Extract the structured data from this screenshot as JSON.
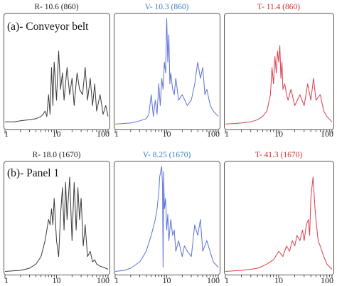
{
  "colors": {
    "R": "#3a3a3a",
    "V": "#5b72d8",
    "T": "#dd3c4c",
    "V_title": "#3a7fc4",
    "T_title": "#d42a2a",
    "axis": "#222222",
    "frame": "#555555"
  },
  "rows": [
    {
      "label": "(a)- Conveyor belt"
    },
    {
      "label": "(b)- Panel 1"
    }
  ],
  "chart_data": [
    {
      "type": "line",
      "title": "R- 10.6 (860)",
      "x_scale": "log",
      "xlim": [
        1,
        100
      ],
      "xticks": [
        "1",
        "10",
        "100"
      ],
      "color": "R",
      "x": [
        1,
        1.5,
        2,
        3,
        4,
        5,
        5.5,
        6,
        6.5,
        7,
        7.5,
        8,
        8.5,
        9,
        10,
        11,
        12,
        13,
        14,
        16,
        18,
        20,
        22,
        25,
        28,
        32,
        36,
        40,
        45,
        50,
        55,
        60,
        70,
        80,
        90,
        100
      ],
      "y": [
        0.05,
        0.05,
        0.06,
        0.07,
        0.08,
        0.1,
        0.12,
        0.15,
        0.1,
        0.3,
        0.12,
        0.55,
        0.2,
        0.6,
        0.25,
        0.7,
        0.35,
        0.5,
        0.25,
        0.55,
        0.3,
        0.45,
        0.2,
        0.5,
        0.35,
        0.3,
        0.55,
        0.25,
        0.45,
        0.2,
        0.4,
        0.15,
        0.3,
        0.12,
        0.2,
        0.1
      ]
    },
    {
      "type": "line",
      "title": "V- 10.3 (860)",
      "x_scale": "log",
      "xlim": [
        1,
        100
      ],
      "xticks": [
        "1",
        "10",
        "100"
      ],
      "color": "V",
      "x": [
        1,
        2,
        3,
        4,
        4.5,
        5,
        5.5,
        6,
        6.5,
        7,
        7.5,
        8,
        8.5,
        9,
        9.5,
        10,
        10.5,
        11,
        11.5,
        12,
        13,
        14,
        15,
        17,
        20,
        25,
        30,
        35,
        40,
        45,
        50,
        55,
        60,
        70,
        80,
        100
      ],
      "y": [
        0.03,
        0.04,
        0.06,
        0.08,
        0.12,
        0.3,
        0.1,
        0.25,
        0.12,
        0.4,
        0.2,
        0.45,
        0.35,
        0.6,
        0.5,
        1.0,
        0.6,
        0.85,
        0.4,
        0.5,
        0.35,
        0.3,
        0.45,
        0.25,
        0.3,
        0.2,
        0.25,
        0.4,
        0.6,
        0.45,
        0.55,
        0.3,
        0.35,
        0.2,
        0.15,
        0.1
      ]
    },
    {
      "type": "line",
      "title": "T- 11.4 (860)",
      "x_scale": "log",
      "xlim": [
        1,
        100
      ],
      "xticks": [
        "1",
        "10",
        "100"
      ],
      "color": "T",
      "x": [
        1,
        2,
        3,
        4,
        5,
        6,
        7,
        7.5,
        8,
        8.5,
        9,
        9.5,
        10,
        10.5,
        11,
        11.5,
        12,
        13,
        14,
        15,
        17,
        20,
        25,
        30,
        35,
        40,
        45,
        50,
        60,
        70,
        80,
        100
      ],
      "y": [
        0.03,
        0.04,
        0.05,
        0.07,
        0.1,
        0.15,
        0.3,
        0.55,
        0.4,
        0.65,
        0.5,
        0.7,
        0.6,
        0.75,
        0.45,
        0.6,
        0.35,
        0.4,
        0.3,
        0.25,
        0.35,
        0.2,
        0.3,
        0.2,
        0.4,
        0.25,
        0.45,
        0.25,
        0.3,
        0.15,
        0.1,
        0.05
      ]
    },
    {
      "type": "line",
      "title": "R- 18.0 (1670)",
      "x_scale": "log",
      "xlim": [
        1,
        100
      ],
      "xticks": [
        "1",
        "10",
        "100"
      ],
      "color": "R",
      "x": [
        1,
        2,
        3,
        4,
        5,
        6,
        7,
        7.5,
        8,
        8.5,
        9,
        10,
        11,
        12,
        13,
        14,
        15,
        16,
        18,
        20,
        22,
        24,
        26,
        28,
        30,
        33,
        36,
        40,
        45,
        50,
        55,
        60,
        70,
        80,
        90,
        100
      ],
      "y": [
        0.01,
        0.02,
        0.04,
        0.08,
        0.15,
        0.3,
        0.5,
        0.45,
        0.6,
        0.45,
        0.7,
        0.3,
        0.15,
        0.55,
        0.8,
        0.4,
        0.85,
        0.5,
        0.9,
        0.3,
        0.85,
        0.4,
        0.8,
        0.5,
        0.7,
        0.25,
        0.45,
        0.15,
        0.2,
        0.1,
        0.12,
        0.08,
        0.06,
        0.05,
        0.04,
        0.03
      ]
    },
    {
      "type": "line",
      "title": "V- 8.25 (1670)",
      "x_scale": "log",
      "xlim": [
        1,
        100
      ],
      "xticks": [
        "1",
        "10",
        "100"
      ],
      "color": "V",
      "x": [
        1,
        1.5,
        2,
        3,
        4,
        5,
        6,
        6.5,
        7,
        7.3,
        7.6,
        8,
        8.3,
        8.5,
        8.7,
        9,
        9.5,
        10,
        10.5,
        11,
        12,
        13,
        14,
        15,
        17,
        20,
        22,
        25,
        30,
        35,
        40,
        45,
        50,
        60,
        80,
        100
      ],
      "y": [
        0.01,
        0.02,
        0.04,
        0.1,
        0.2,
        0.35,
        0.5,
        0.6,
        0.75,
        0.9,
        0.95,
        1.0,
        0.8,
        0.05,
        0.95,
        0.6,
        0.7,
        0.4,
        0.55,
        0.3,
        0.5,
        0.35,
        0.4,
        0.2,
        0.3,
        0.15,
        0.25,
        0.2,
        0.15,
        0.45,
        0.35,
        0.5,
        0.2,
        0.3,
        0.1,
        0.05
      ]
    },
    {
      "type": "line",
      "title": "T- 41.3 (1670)",
      "x_scale": "log",
      "xlim": [
        1,
        100
      ],
      "xticks": [
        "1",
        "10",
        "100"
      ],
      "color": "T",
      "x": [
        1,
        2,
        3,
        4,
        5,
        6,
        8,
        10,
        12,
        14,
        16,
        18,
        20,
        22,
        25,
        28,
        30,
        33,
        36,
        38,
        40,
        42,
        44,
        46,
        48,
        50,
        55,
        60,
        70,
        80,
        100
      ],
      "y": [
        0.01,
        0.02,
        0.03,
        0.04,
        0.06,
        0.08,
        0.12,
        0.2,
        0.15,
        0.25,
        0.2,
        0.3,
        0.25,
        0.35,
        0.3,
        0.4,
        0.3,
        0.45,
        0.5,
        0.35,
        0.7,
        0.8,
        0.9,
        0.75,
        0.6,
        0.5,
        0.3,
        0.25,
        0.15,
        0.08,
        0.03
      ]
    }
  ]
}
